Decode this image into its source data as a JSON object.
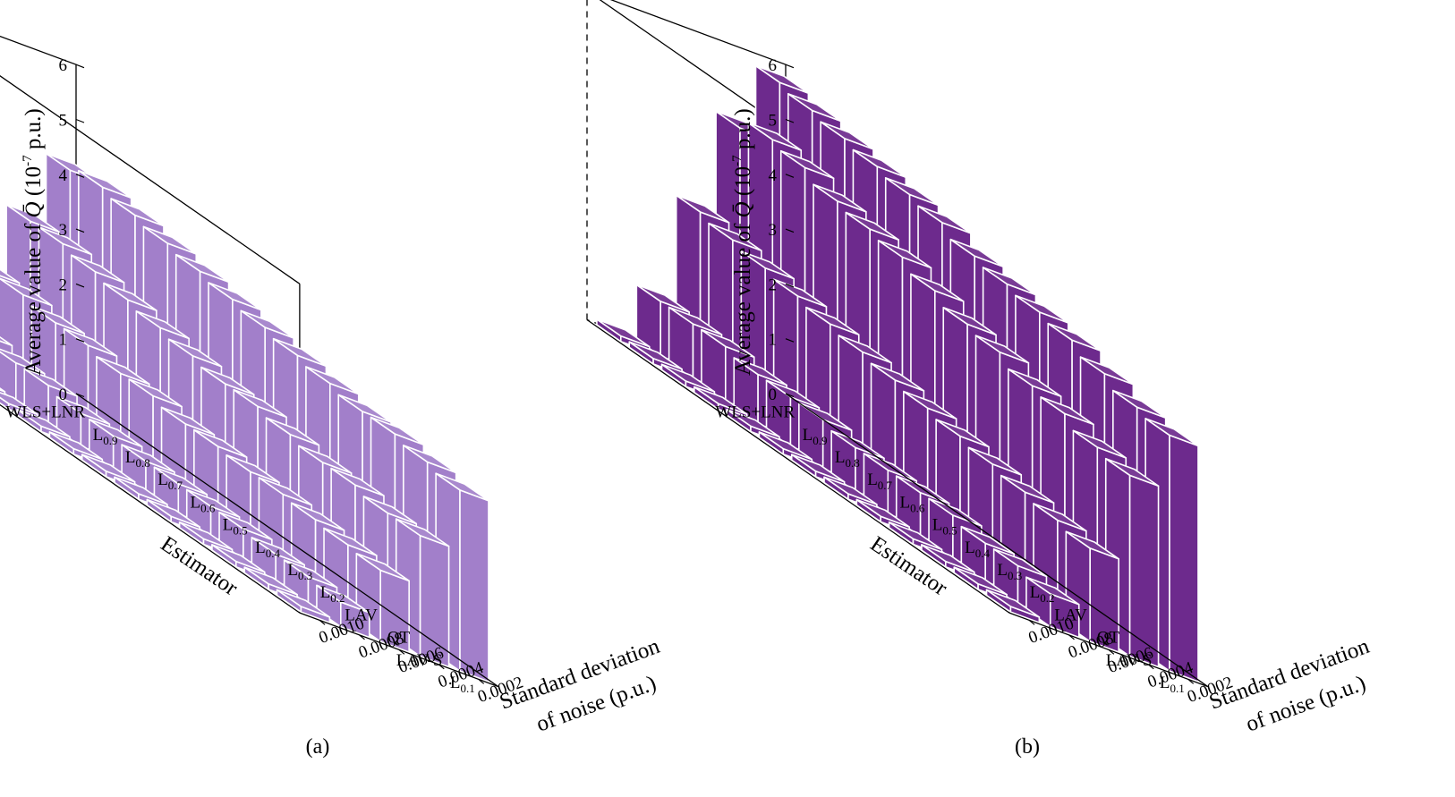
{
  "colors": {
    "panel_a_bar": "#a27fca",
    "panel_b_bar": "#6d2a8d",
    "bar_edge": "#ffffff",
    "axis": "#000000"
  },
  "chart_data": [
    {
      "type": "bar3d",
      "caption": "(a)",
      "zlabel_prefix": "Average value of ",
      "zlabel_symbol": "Q̄",
      "zlabel_unit_base": " (10",
      "zlabel_unit_exp": "-7",
      "zlabel_unit_tail": " p.u.)",
      "ylabel": "Estimator",
      "xlabel_line1": "Standard deviation",
      "xlabel_line2": "of noise (p.u.)",
      "zlim": [
        0,
        6
      ],
      "zticks": [
        "0",
        "1",
        "2",
        "3",
        "4",
        "5",
        "6"
      ],
      "x_ticks": [
        "0.0002",
        "0.0004",
        "0.0006",
        "0.0008",
        "0.0010"
      ],
      "estimators": [
        {
          "base": "WLS+LNR",
          "sub": ""
        },
        {
          "base": "L",
          "sub": "0.9"
        },
        {
          "base": "L",
          "sub": "0.8"
        },
        {
          "base": "L",
          "sub": "0.7"
        },
        {
          "base": "L",
          "sub": "0.6"
        },
        {
          "base": "L",
          "sub": "0.5"
        },
        {
          "base": "L",
          "sub": "0.4"
        },
        {
          "base": "L",
          "sub": "0.3"
        },
        {
          "base": "L",
          "sub": "0.2"
        },
        {
          "base": "LAV",
          "sub": ""
        },
        {
          "base": "QT",
          "sub": ""
        },
        {
          "base": "LAV-S",
          "sub": ""
        },
        {
          "base": "L",
          "sub": "0.1"
        }
      ],
      "series": [
        {
          "name": "0.0002",
          "values": [
            0.1,
            0.1,
            0.1,
            0.1,
            0.1,
            0.1,
            0.1,
            0.1,
            0.1,
            0.1,
            0.1,
            0.1,
            0.1
          ]
        },
        {
          "name": "0.0004",
          "values": [
            0.8,
            0.8,
            0.7,
            0.7,
            0.6,
            0.6,
            0.55,
            0.55,
            0.55,
            0.55,
            0.5,
            0.5,
            0.45
          ]
        },
        {
          "name": "0.0006",
          "values": [
            1.8,
            1.8,
            1.7,
            1.7,
            1.6,
            1.6,
            1.5,
            1.5,
            1.45,
            1.45,
            1.4,
            1.35,
            1.3
          ]
        },
        {
          "name": "0.0008",
          "values": [
            3.0,
            3.0,
            2.9,
            2.8,
            2.7,
            2.6,
            2.5,
            2.5,
            2.4,
            2.3,
            2.3,
            2.2,
            2.2
          ]
        },
        {
          "name": "0.0010",
          "values": [
            4.2,
            4.3,
            4.2,
            4.1,
            4.0,
            3.9,
            3.8,
            3.7,
            3.6,
            3.5,
            3.5,
            3.4,
            3.3
          ]
        }
      ]
    },
    {
      "type": "bar3d",
      "caption": "(b)",
      "zlabel_prefix": "Average value of ",
      "zlabel_symbol": "Q̄",
      "zlabel_unit_base": " (10",
      "zlabel_unit_exp": "-7",
      "zlabel_unit_tail": " p.u.)",
      "ylabel": "Estimator",
      "xlabel_line1": "Standard deviation",
      "xlabel_line2": "of noise (p.u.)",
      "zlim": [
        0,
        6
      ],
      "zticks": [
        "0",
        "1",
        "2",
        "3",
        "4",
        "5",
        "6"
      ],
      "x_ticks": [
        "0.0002",
        "0.0004",
        "0.0006",
        "0.0008",
        "0.0010"
      ],
      "estimators": [
        {
          "base": "WLS+LNR",
          "sub": ""
        },
        {
          "base": "L",
          "sub": "0.9"
        },
        {
          "base": "L",
          "sub": "0.8"
        },
        {
          "base": "L",
          "sub": "0.7"
        },
        {
          "base": "L",
          "sub": "0.6"
        },
        {
          "base": "L",
          "sub": "0.5"
        },
        {
          "base": "L",
          "sub": "0.4"
        },
        {
          "base": "L",
          "sub": "0.3"
        },
        {
          "base": "L",
          "sub": "0.2"
        },
        {
          "base": "LAV",
          "sub": ""
        },
        {
          "base": "QT",
          "sub": ""
        },
        {
          "base": "LAV-S",
          "sub": ""
        },
        {
          "base": "L",
          "sub": "0.1"
        }
      ],
      "series": [
        {
          "name": "0.0002",
          "values": [
            0.1,
            0.1,
            0.1,
            0.1,
            0.1,
            0.1,
            0.1,
            0.1,
            0.1,
            0.1,
            0.1,
            0.1,
            0.1
          ]
        },
        {
          "name": "0.0004",
          "values": [
            1.0,
            1.0,
            1.0,
            0.9,
            0.9,
            0.9,
            0.8,
            0.8,
            0.8,
            0.8,
            0.7,
            0.7,
            0.6
          ]
        },
        {
          "name": "0.0006",
          "values": [
            2.9,
            2.8,
            2.7,
            2.6,
            2.5,
            2.4,
            2.3,
            2.2,
            2.1,
            2.0,
            1.9,
            1.8,
            1.7
          ]
        },
        {
          "name": "0.0008",
          "values": [
            4.7,
            4.9,
            4.8,
            4.6,
            4.5,
            4.4,
            4.2,
            4.0,
            3.9,
            3.7,
            3.6,
            3.4,
            3.3
          ]
        },
        {
          "name": "0.0010",
          "values": [
            5.8,
            5.7,
            5.6,
            5.5,
            5.4,
            5.3,
            5.1,
            5.0,
            4.9,
            4.8,
            4.6,
            4.4,
            4.3
          ]
        }
      ]
    }
  ]
}
